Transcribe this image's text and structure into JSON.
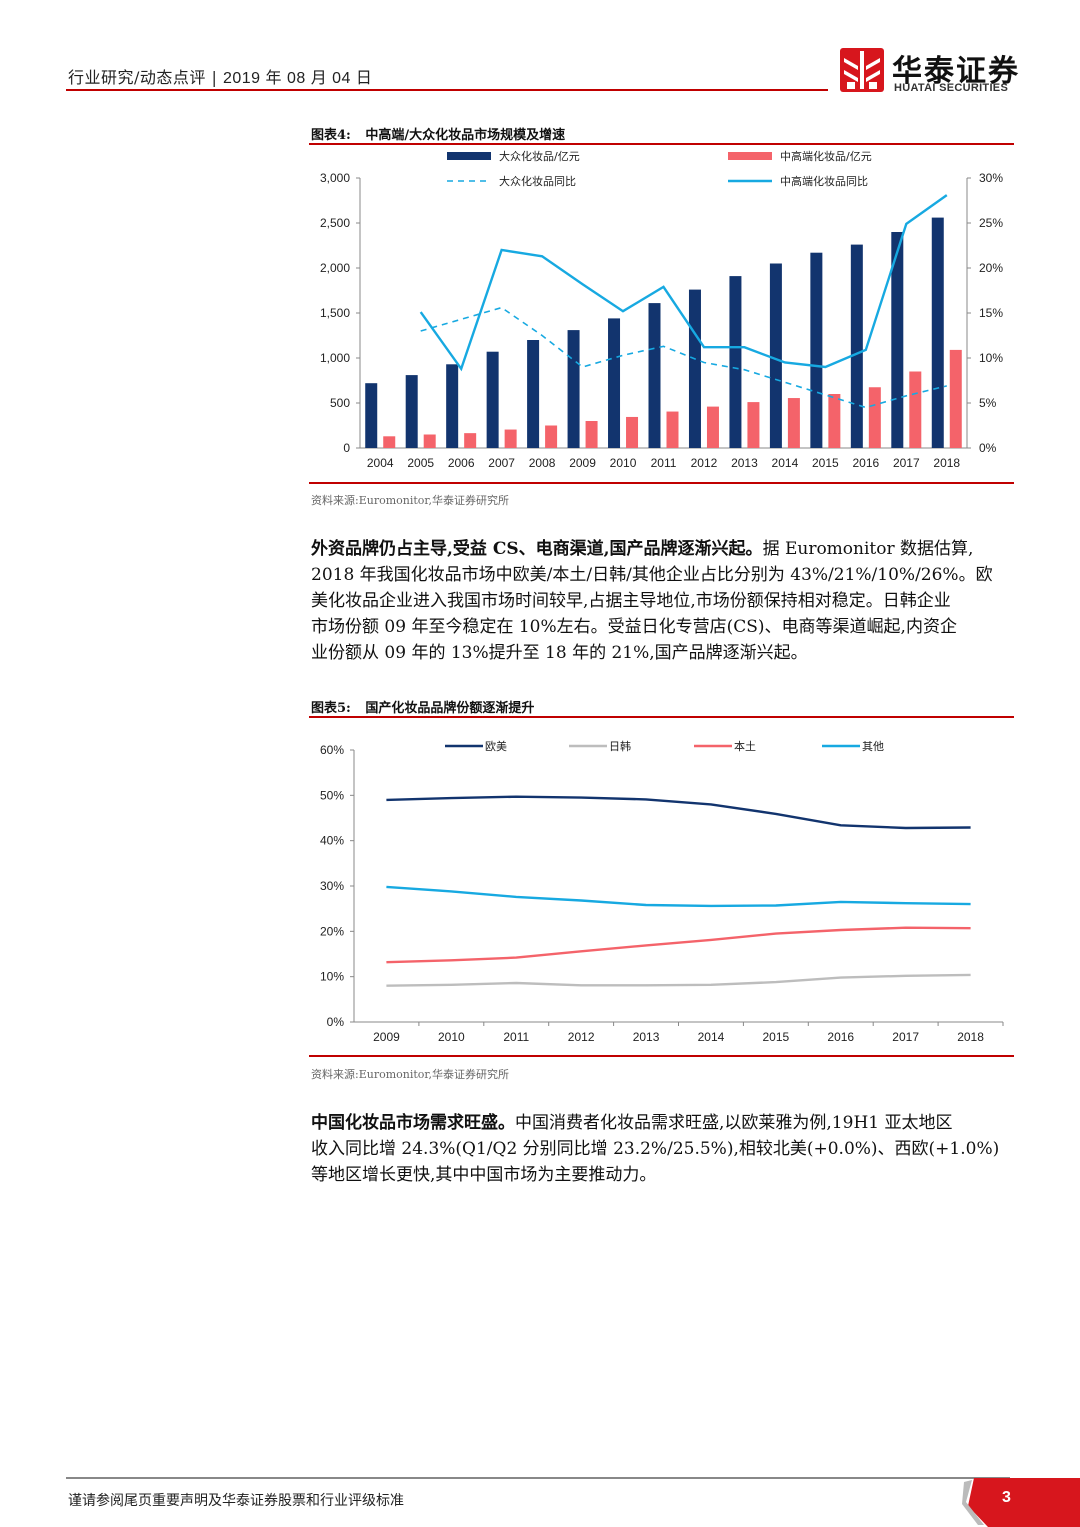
{
  "header": {
    "report_type": "行业研究/动态点评",
    "date": "2019 年 08 月 04 日",
    "logo_cn": "华泰证券",
    "logo_en": "HUATAI SECURITIES"
  },
  "figure4": {
    "label": "图表4:",
    "title": "中高端/大众化妆品市场规模及增速",
    "source": "资料来源:Euromonitor,华泰证券研究所"
  },
  "figure5": {
    "label": "图表5:",
    "title": "国产化妆品品牌份额逐渐提升",
    "source": "资料来源:Euromonitor,华泰证券研究所"
  },
  "paragraph1": {
    "lead": "外资品牌仍占主导,受益 CS、电商渠道,国产品牌逐渐兴起。",
    "lines": [
      "据 Euromonitor 数据估算,",
      "2018 年我国化妆品市场中欧美/本土/日韩/其他企业占比分别为 43%/21%/10%/26%。欧",
      "美化妆品企业进入我国市场时间较早,占据主导地位,市场份额保持相对稳定。日韩企业",
      "市场份额 09 年至今稳定在 10%左右。受益日化专营店(CS)、电商等渠道崛起,内资企",
      "业份额从 09 年的 13%提升至 18 年的 21%,国产品牌逐渐兴起。"
    ]
  },
  "paragraph2": {
    "lead": "中国化妆品市场需求旺盛。",
    "lines": [
      "中国消费者化妆品需求旺盛,以欧莱雅为例,19H1 亚太地区",
      "收入同比增 24.3%(Q1/Q2 分别同比增 23.2%/25.5%),相较北美(+0.0%)、西欧(+1.0%)",
      "等地区增长更快,其中中国市场为主要推动力。"
    ]
  },
  "footer": {
    "disclaimer": "谨请参阅尾页重要声明及华泰证券股票和行业评级标准",
    "page": "3"
  },
  "colors": {
    "navy": "#12346e",
    "red": "#f4636a",
    "cyan": "#17a9e1",
    "gray": "#bdbdbd",
    "brand_red": "#c00000"
  },
  "chart_data": [
    {
      "type": "bar",
      "title": "中高端/大众化妆品市场规模及增速",
      "categories": [
        "2004",
        "2005",
        "2006",
        "2007",
        "2008",
        "2009",
        "2010",
        "2011",
        "2012",
        "2013",
        "2014",
        "2015",
        "2016",
        "2017",
        "2018"
      ],
      "ylim": [
        0,
        3000
      ],
      "yticks": [
        "0",
        "500",
        "1,000",
        "1,500",
        "2,000",
        "2,500",
        "3,000"
      ],
      "y2lim": [
        0,
        30
      ],
      "y2ticks": [
        "0%",
        "5%",
        "10%",
        "15%",
        "20%",
        "25%",
        "30%"
      ],
      "legend": "top",
      "series": [
        {
          "name": "大众化妆品/亿元",
          "kind": "bar",
          "axis": "left",
          "color": "#12346e",
          "values": [
            720,
            810,
            930,
            1070,
            1200,
            1310,
            1440,
            1610,
            1760,
            1910,
            2050,
            2170,
            2260,
            2400,
            2560
          ]
        },
        {
          "name": "中高端化妆品/亿元",
          "kind": "bar",
          "axis": "left",
          "color": "#f4636a",
          "values": [
            130,
            150,
            165,
            205,
            250,
            300,
            345,
            405,
            460,
            510,
            555,
            600,
            675,
            850,
            1090
          ]
        },
        {
          "name": "大众化妆品同比",
          "kind": "line",
          "dash": true,
          "axis": "right",
          "color": "#17a9e1",
          "values": [
            null,
            13,
            14.3,
            15.6,
            12.5,
            9,
            10.3,
            11.3,
            9.5,
            8.7,
            7.3,
            5.9,
            4.5,
            5.8,
            6.9
          ]
        },
        {
          "name": "中高端化妆品同比",
          "kind": "line",
          "dash": false,
          "axis": "right",
          "color": "#17a9e1",
          "values": [
            null,
            15.1,
            8.8,
            22,
            21.3,
            18.2,
            15.2,
            17.9,
            11.2,
            11.2,
            9.5,
            9,
            10.9,
            24.9,
            28.1
          ]
        }
      ]
    },
    {
      "type": "line",
      "title": "国产化妆品品牌份额逐渐提升",
      "categories": [
        "2009",
        "2010",
        "2011",
        "2012",
        "2013",
        "2014",
        "2015",
        "2016",
        "2017",
        "2018"
      ],
      "ylim": [
        0,
        60
      ],
      "yticks": [
        "0%",
        "10%",
        "20%",
        "30%",
        "40%",
        "50%",
        "60%"
      ],
      "legend": "top",
      "series": [
        {
          "name": "欧美",
          "color": "#12346e",
          "values": [
            49,
            49.4,
            49.7,
            49.5,
            49.1,
            48,
            45.9,
            43.4,
            42.8,
            42.9
          ]
        },
        {
          "name": "日韩",
          "color": "#bdbdbd",
          "values": [
            8,
            8.2,
            8.6,
            8.1,
            8.1,
            8.2,
            8.8,
            9.8,
            10.2,
            10.4
          ]
        },
        {
          "name": "本土",
          "color": "#f4636a",
          "values": [
            13.2,
            13.6,
            14.2,
            15.6,
            16.9,
            18.1,
            19.5,
            20.3,
            20.8,
            20.7
          ]
        },
        {
          "name": "其他",
          "color": "#17a9e1",
          "values": [
            29.8,
            28.8,
            27.6,
            26.8,
            25.8,
            25.6,
            25.7,
            26.5,
            26.2,
            26
          ]
        }
      ]
    }
  ]
}
